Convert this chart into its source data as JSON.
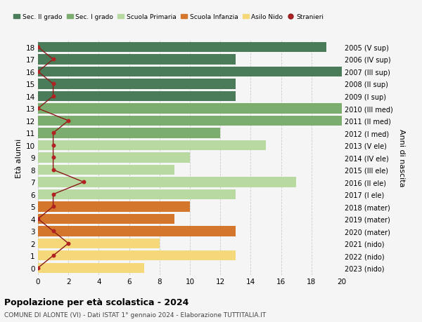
{
  "ages": [
    0,
    1,
    2,
    3,
    4,
    5,
    6,
    7,
    8,
    9,
    10,
    11,
    12,
    13,
    14,
    15,
    16,
    17,
    18
  ],
  "right_labels": [
    "2023 (nido)",
    "2022 (nido)",
    "2021 (nido)",
    "2020 (mater)",
    "2019 (mater)",
    "2018 (mater)",
    "2017 (I ele)",
    "2016 (II ele)",
    "2015 (III ele)",
    "2014 (IV ele)",
    "2013 (V ele)",
    "2012 (I med)",
    "2011 (II med)",
    "2010 (III med)",
    "2009 (I sup)",
    "2008 (II sup)",
    "2007 (III sup)",
    "2006 (IV sup)",
    "2005 (V sup)"
  ],
  "bar_values": [
    7,
    13,
    8,
    13,
    9,
    10,
    13,
    17,
    9,
    10,
    15,
    12,
    20,
    20,
    13,
    13,
    20,
    13,
    19
  ],
  "bar_colors": [
    "#f5d87a",
    "#f5d87a",
    "#f5d87a",
    "#d4762b",
    "#d4762b",
    "#d4762b",
    "#b8d9a0",
    "#b8d9a0",
    "#b8d9a0",
    "#b8d9a0",
    "#b8d9a0",
    "#7aad6e",
    "#7aad6e",
    "#7aad6e",
    "#4a7c59",
    "#4a7c59",
    "#4a7c59",
    "#4a7c59",
    "#4a7c59"
  ],
  "stranieri_values": [
    0,
    1,
    2,
    1,
    0,
    1,
    1,
    3,
    1,
    1,
    1,
    1,
    2,
    0,
    1,
    1,
    0,
    1,
    0
  ],
  "legend_labels": [
    "Sec. II grado",
    "Sec. I grado",
    "Scuola Primaria",
    "Scuola Infanzia",
    "Asilo Nido",
    "Stranieri"
  ],
  "legend_colors": [
    "#4a7c59",
    "#7aad6e",
    "#b8d9a0",
    "#d4762b",
    "#f5d87a",
    "#b22222"
  ],
  "title": "Popolazione per età scolastica - 2024",
  "subtitle": "COMUNE DI ALONTE (VI) - Dati ISTAT 1° gennaio 2024 - Elaborazione TUTTITALIA.IT",
  "ylabel_left": "Età alunni",
  "ylabel_right": "Anni di nascita",
  "xlim": [
    0,
    20
  ],
  "xticks": [
    0,
    2,
    4,
    6,
    8,
    10,
    12,
    14,
    16,
    18,
    20
  ],
  "background_color": "#f5f5f5",
  "grid_color": "#cccccc",
  "stranieri_line_color": "#8b1a1a",
  "stranieri_marker_color": "#b22222"
}
